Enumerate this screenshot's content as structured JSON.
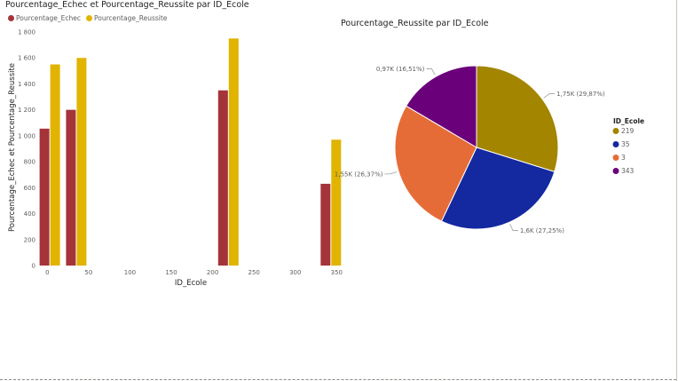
{
  "chart_data": [
    {
      "type": "bar",
      "title": "Pourcentage_Echec et Pourcentage_Reussite par ID_Ecole",
      "xlabel": "ID_Ecole",
      "ylabel": "Pourcentage_Echec et Pourcentage_Reussite",
      "x_axis_type": "linear",
      "xlim": [
        -10,
        355
      ],
      "x_ticks": [
        "0",
        "50",
        "100",
        "150",
        "200",
        "250",
        "300",
        "350"
      ],
      "ylim": [
        0,
        1800
      ],
      "y_ticks": [
        "0",
        "200",
        "400",
        "600",
        "800",
        "1 000",
        "1 200",
        "1 400",
        "1 600",
        "1 800"
      ],
      "legend_position": "top-left",
      "x": [
        3,
        35,
        219,
        343
      ],
      "series": [
        {
          "name": "Pourcentage_Echec",
          "color": "#a4343a",
          "values": [
            1055,
            1200,
            1350,
            630
          ]
        },
        {
          "name": "Pourcentage_Reussite",
          "color": "#e0b400",
          "values": [
            1550,
            1600,
            1750,
            970
          ]
        }
      ]
    },
    {
      "type": "pie",
      "title": "Pourcentage_Reussite par ID_Ecole",
      "legend_title": "ID_Ecole",
      "legend_position": "right",
      "slices": [
        {
          "name": "219",
          "value": 1.75,
          "label": "1,75K (29,87%)",
          "color": "#a38500"
        },
        {
          "name": "35",
          "value": 1.6,
          "label": "1,6K (27,25%)",
          "color": "#1428a0"
        },
        {
          "name": "3",
          "value": 1.55,
          "label": "1,55K (26,37%)",
          "color": "#e66c37"
        },
        {
          "name": "343",
          "value": 0.97,
          "label": "0,97K (16,51%)",
          "color": "#6b007b"
        }
      ]
    }
  ]
}
